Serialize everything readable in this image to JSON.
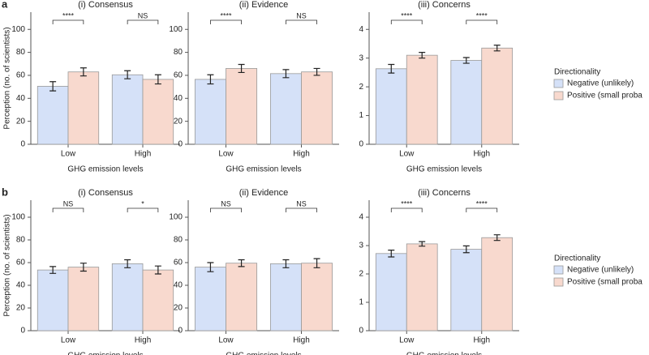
{
  "panel_labels": [
    "a",
    "b"
  ],
  "chart_data": [
    {
      "type": "bar",
      "title": "(i) Consensus",
      "ylabel": "Perception (no. of scientists)",
      "xlabel": "GHG emission levels",
      "categories": [
        "Low",
        "High"
      ],
      "ylim": [
        0,
        115
      ],
      "yticks": [
        0,
        20,
        40,
        60,
        80,
        100
      ],
      "series": [
        {
          "name": "Negative (unlikely)",
          "color": "#d5e1f8",
          "values": [
            50.5,
            60.5
          ],
          "errors": [
            4,
            3.5
          ]
        },
        {
          "name": "Positive (small proba",
          "color": "#f8d9ce",
          "values": [
            63,
            56.5
          ],
          "errors": [
            3.5,
            4
          ]
        }
      ],
      "annotations": [
        "****",
        "NS"
      ]
    },
    {
      "type": "bar",
      "title": "(ii) Evidence",
      "xlabel": "GHG emission levels",
      "categories": [
        "Low",
        "High"
      ],
      "ylim": [
        0,
        115
      ],
      "yticks": [
        0,
        20,
        40,
        60,
        80,
        100
      ],
      "series": [
        {
          "name": "Negative (unlikely)",
          "color": "#d5e1f8",
          "values": [
            56.5,
            61.5
          ],
          "errors": [
            4,
            3.5
          ]
        },
        {
          "name": "Positive (small proba",
          "color": "#f8d9ce",
          "values": [
            66,
            63
          ],
          "errors": [
            3.5,
            3
          ]
        }
      ],
      "annotations": [
        "****",
        "NS"
      ]
    },
    {
      "type": "bar",
      "title": "(iii) Concerns",
      "xlabel": "GHG emission levels",
      "categories": [
        "Low",
        "High"
      ],
      "ylim": [
        0,
        4.6
      ],
      "yticks": [
        0,
        1,
        2,
        3,
        4
      ],
      "series": [
        {
          "name": "Negative (unlikely)",
          "color": "#d5e1f8",
          "values": [
            2.63,
            2.92
          ],
          "errors": [
            0.15,
            0.1
          ]
        },
        {
          "name": "Positive (small proba",
          "color": "#f8d9ce",
          "values": [
            3.1,
            3.35
          ],
          "errors": [
            0.1,
            0.1
          ]
        }
      ],
      "annotations": [
        "****",
        "****"
      ],
      "legend": "right",
      "legend_title": "Directionality"
    },
    {
      "type": "bar",
      "title": "(i) Consensus",
      "ylabel": "Perception (no. of scientists)",
      "xlabel": "GHG emission levels",
      "categories": [
        "Low",
        "High"
      ],
      "ylim": [
        0,
        115
      ],
      "yticks": [
        0,
        20,
        40,
        60,
        80,
        100
      ],
      "series": [
        {
          "name": "Negative (unlikely)",
          "color": "#d5e1f8",
          "values": [
            53.5,
            59
          ],
          "errors": [
            3,
            3.5
          ]
        },
        {
          "name": "Positive (small proba",
          "color": "#f8d9ce",
          "values": [
            56,
            53.5
          ],
          "errors": [
            3.5,
            3.5
          ]
        }
      ],
      "annotations": [
        "NS",
        "*"
      ]
    },
    {
      "type": "bar",
      "title": "(ii) Evidence",
      "xlabel": "GHG emission levels",
      "categories": [
        "Low",
        "High"
      ],
      "ylim": [
        0,
        115
      ],
      "yticks": [
        0,
        20,
        40,
        60,
        80,
        100
      ],
      "series": [
        {
          "name": "Negative (unlikely)",
          "color": "#d5e1f8",
          "values": [
            56,
            59
          ],
          "errors": [
            4,
            3.5
          ]
        },
        {
          "name": "Positive (small proba",
          "color": "#f8d9ce",
          "values": [
            59.5,
            59.5
          ],
          "errors": [
            3,
            4
          ]
        }
      ],
      "annotations": [
        "NS",
        "NS"
      ]
    },
    {
      "type": "bar",
      "title": "(iii) Concerns",
      "xlabel": "GHG emission levels",
      "categories": [
        "Low",
        "High"
      ],
      "ylim": [
        0,
        4.6
      ],
      "yticks": [
        0,
        1,
        2,
        3,
        4
      ],
      "series": [
        {
          "name": "Negative (unlikely)",
          "color": "#d5e1f8",
          "values": [
            2.72,
            2.87
          ],
          "errors": [
            0.12,
            0.12
          ]
        },
        {
          "name": "Positive (small proba",
          "color": "#f8d9ce",
          "values": [
            3.06,
            3.28
          ],
          "errors": [
            0.08,
            0.1
          ]
        }
      ],
      "annotations": [
        "****",
        "****"
      ],
      "legend": "right",
      "legend_title": "Directionality"
    }
  ]
}
